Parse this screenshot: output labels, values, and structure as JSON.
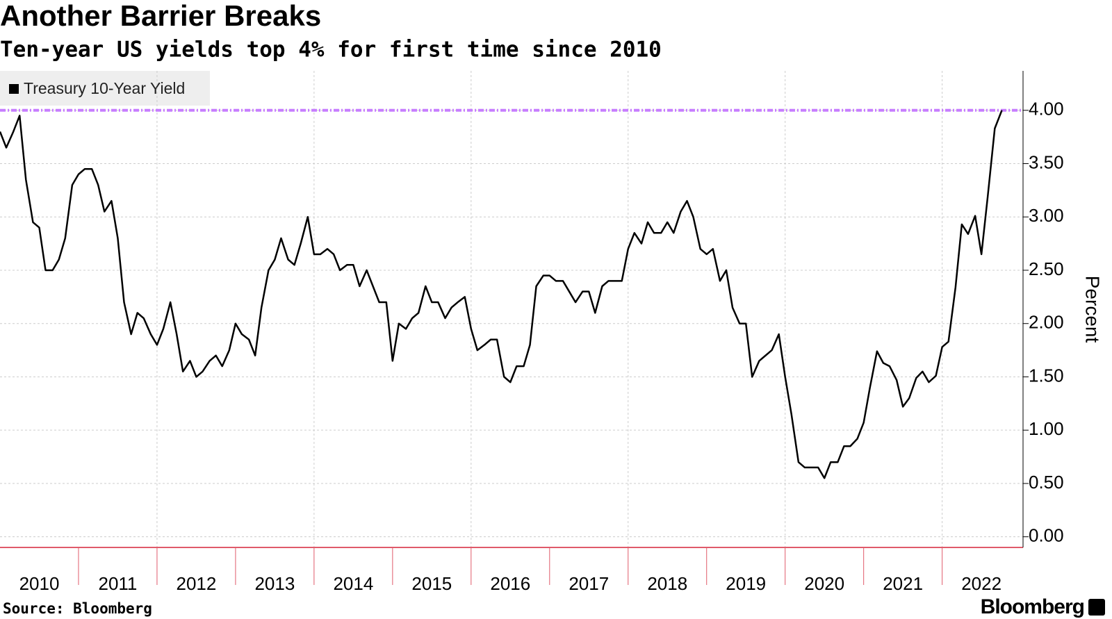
{
  "chart_data": {
    "type": "line",
    "title": "Another Barrier Breaks",
    "subtitle": "Ten-year US yields top 4% for first time since 2010",
    "y_axis_label": "Percent",
    "source": "Source: Bloomberg",
    "brand": "Bloomberg",
    "xlim": [
      2010,
      2023.03
    ],
    "xticks": [
      {
        "value": 2010.5,
        "label": "2010"
      },
      {
        "value": 2011.5,
        "label": "2011"
      },
      {
        "value": 2012.5,
        "label": "2012"
      },
      {
        "value": 2013.5,
        "label": "2013"
      },
      {
        "value": 2014.5,
        "label": "2014"
      },
      {
        "value": 2015.5,
        "label": "2015"
      },
      {
        "value": 2016.5,
        "label": "2016"
      },
      {
        "value": 2017.5,
        "label": "2017"
      },
      {
        "value": 2018.5,
        "label": "2018"
      },
      {
        "value": 2019.5,
        "label": "2019"
      },
      {
        "value": 2020.5,
        "label": "2020"
      },
      {
        "value": 2021.5,
        "label": "2021"
      },
      {
        "value": 2022.5,
        "label": "2022"
      }
    ],
    "ylim": [
      -0.1,
      4.37
    ],
    "yticks": [
      {
        "value": 0,
        "label": "0.00"
      },
      {
        "value": 0.5,
        "label": "0.50"
      },
      {
        "value": 1,
        "label": "1.00"
      },
      {
        "value": 1.5,
        "label": "1.50"
      },
      {
        "value": 2,
        "label": "2.00"
      },
      {
        "value": 2.5,
        "label": "2.50"
      },
      {
        "value": 3,
        "label": "3.00"
      },
      {
        "value": 3.5,
        "label": "3.50"
      },
      {
        "value": 4,
        "label": "4.00"
      }
    ],
    "grid": true,
    "legend": "top-left",
    "threshold": {
      "value": 4,
      "color": "#c77dff"
    },
    "x": [
      2010.0,
      2010.08,
      2010.17,
      2010.25,
      2010.33,
      2010.42,
      2010.5,
      2010.58,
      2010.67,
      2010.75,
      2010.83,
      2010.92,
      2011.0,
      2011.08,
      2011.17,
      2011.25,
      2011.33,
      2011.42,
      2011.5,
      2011.58,
      2011.67,
      2011.75,
      2011.83,
      2011.92,
      2012.0,
      2012.08,
      2012.17,
      2012.25,
      2012.33,
      2012.42,
      2012.5,
      2012.58,
      2012.67,
      2012.75,
      2012.83,
      2012.92,
      2013.0,
      2013.08,
      2013.17,
      2013.25,
      2013.33,
      2013.42,
      2013.5,
      2013.58,
      2013.67,
      2013.75,
      2013.83,
      2013.92,
      2014.0,
      2014.08,
      2014.17,
      2014.25,
      2014.33,
      2014.42,
      2014.5,
      2014.58,
      2014.67,
      2014.75,
      2014.83,
      2014.92,
      2015.0,
      2015.08,
      2015.17,
      2015.25,
      2015.33,
      2015.42,
      2015.5,
      2015.58,
      2015.67,
      2015.75,
      2015.83,
      2015.92,
      2016.0,
      2016.08,
      2016.17,
      2016.25,
      2016.33,
      2016.42,
      2016.5,
      2016.58,
      2016.67,
      2016.75,
      2016.83,
      2016.92,
      2017.0,
      2017.08,
      2017.17,
      2017.25,
      2017.33,
      2017.42,
      2017.5,
      2017.58,
      2017.67,
      2017.75,
      2017.83,
      2017.92,
      2018.0,
      2018.08,
      2018.17,
      2018.25,
      2018.33,
      2018.42,
      2018.5,
      2018.58,
      2018.67,
      2018.75,
      2018.83,
      2018.92,
      2019.0,
      2019.08,
      2019.17,
      2019.25,
      2019.33,
      2019.42,
      2019.5,
      2019.58,
      2019.67,
      2019.75,
      2019.83,
      2019.92,
      2020.0,
      2020.08,
      2020.17,
      2020.25,
      2020.33,
      2020.42,
      2020.5,
      2020.58,
      2020.67,
      2020.75,
      2020.83,
      2020.92,
      2021.0,
      2021.08,
      2021.17,
      2021.25,
      2021.33,
      2021.42,
      2021.5,
      2021.58,
      2021.67,
      2021.75,
      2021.83,
      2021.92,
      2022.0,
      2022.08,
      2022.17,
      2022.25,
      2022.33,
      2022.42,
      2022.5,
      2022.58,
      2022.67,
      2022.76
    ],
    "series": [
      {
        "name": "Treasury 10-Year Yield",
        "color": "#000000",
        "values": [
          3.8,
          3.65,
          3.8,
          3.95,
          3.35,
          2.95,
          2.9,
          2.5,
          2.5,
          2.6,
          2.8,
          3.3,
          3.4,
          3.45,
          3.45,
          3.3,
          3.05,
          3.15,
          2.8,
          2.2,
          1.9,
          2.1,
          2.05,
          1.9,
          1.8,
          1.95,
          2.2,
          1.9,
          1.55,
          1.65,
          1.5,
          1.55,
          1.65,
          1.7,
          1.6,
          1.75,
          2.0,
          1.9,
          1.85,
          1.7,
          2.15,
          2.5,
          2.6,
          2.8,
          2.6,
          2.55,
          2.75,
          3.0,
          2.65,
          2.65,
          2.7,
          2.65,
          2.5,
          2.55,
          2.55,
          2.35,
          2.5,
          2.35,
          2.2,
          2.2,
          1.65,
          2.0,
          1.95,
          2.05,
          2.1,
          2.35,
          2.2,
          2.2,
          2.05,
          2.15,
          2.2,
          2.25,
          1.95,
          1.75,
          1.8,
          1.85,
          1.85,
          1.5,
          1.45,
          1.6,
          1.6,
          1.8,
          2.35,
          2.45,
          2.45,
          2.4,
          2.4,
          2.3,
          2.2,
          2.3,
          2.3,
          2.1,
          2.35,
          2.4,
          2.4,
          2.4,
          2.7,
          2.85,
          2.75,
          2.95,
          2.85,
          2.85,
          2.95,
          2.85,
          3.05,
          3.15,
          3.0,
          2.7,
          2.65,
          2.7,
          2.4,
          2.5,
          2.15,
          2.0,
          2.0,
          1.5,
          1.65,
          1.7,
          1.75,
          1.9,
          1.5,
          1.15,
          0.7,
          0.65,
          0.65,
          0.65,
          0.55,
          0.7,
          0.7,
          0.85,
          0.85,
          0.92,
          1.07,
          1.4,
          1.74,
          1.63,
          1.6,
          1.47,
          1.22,
          1.3,
          1.49,
          1.55,
          1.45,
          1.51,
          1.78,
          1.83,
          2.34,
          2.93,
          2.84,
          3.01,
          2.65,
          3.19,
          3.83,
          4.0
        ]
      }
    ]
  }
}
